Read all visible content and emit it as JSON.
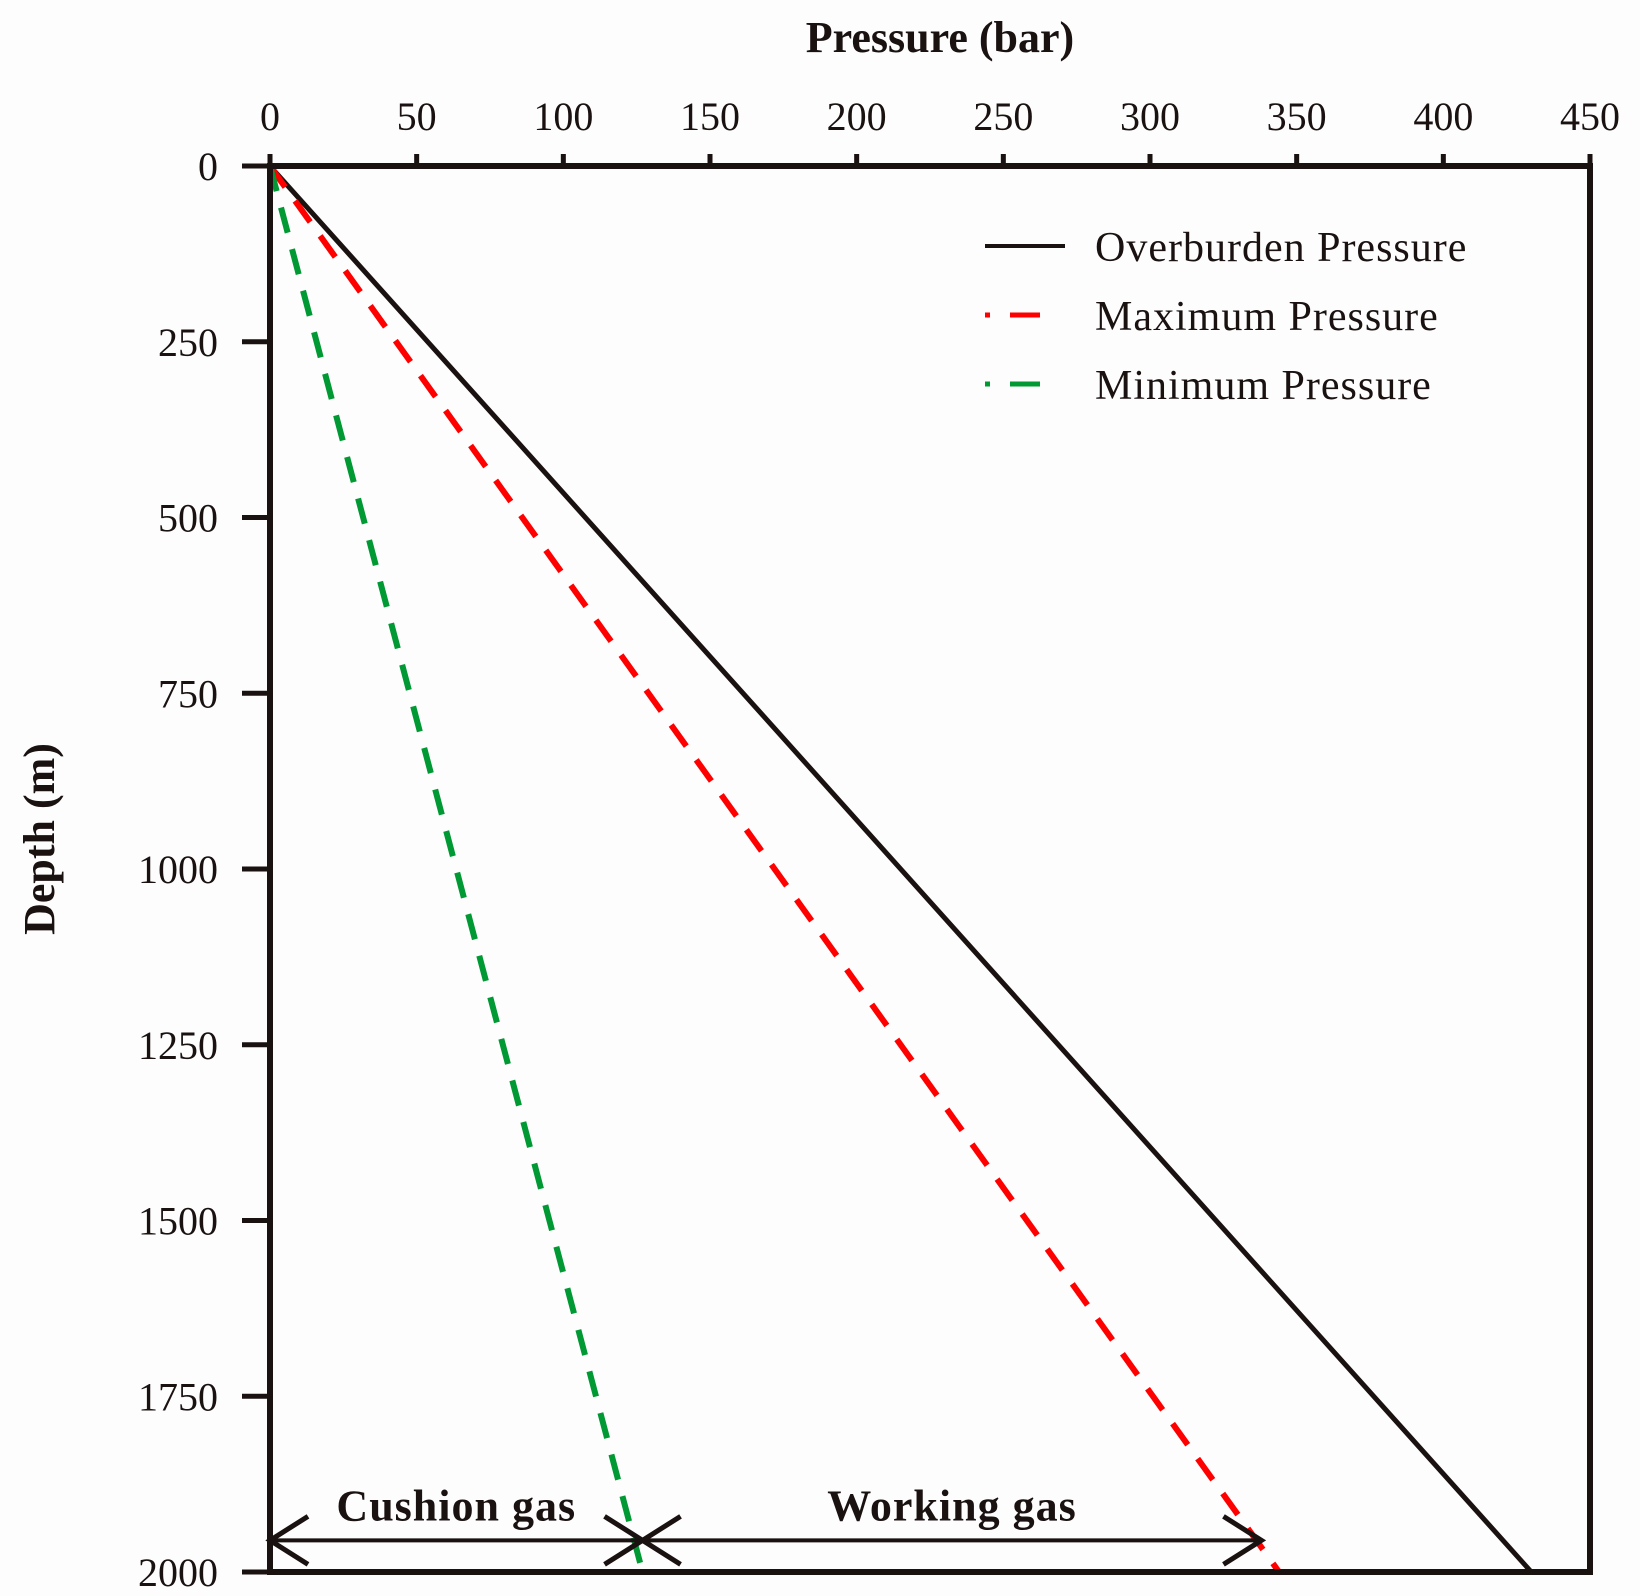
{
  "chart_data": {
    "type": "line",
    "xlabel": "Pressure (bar)",
    "ylabel": "Depth (m)",
    "xlim": [
      0,
      450
    ],
    "ylim": [
      0,
      2000
    ],
    "x_axis_position": "top",
    "y_axis_inverted": true,
    "grid": false,
    "legend_position": "top-right",
    "xticks": [
      0,
      50,
      100,
      150,
      200,
      250,
      300,
      350,
      400,
      450
    ],
    "yticks": [
      0,
      250,
      500,
      750,
      1000,
      1250,
      1500,
      1750,
      2000
    ],
    "series": [
      {
        "name": "Overburden Pressure",
        "style": "solid",
        "color": "#1a1111",
        "points": [
          [
            0,
            0
          ],
          [
            430,
            2000
          ]
        ]
      },
      {
        "name": "Maximum Pressure",
        "style": "dashed",
        "color": "#ff0000",
        "points": [
          [
            0,
            0
          ],
          [
            344,
            2000
          ]
        ]
      },
      {
        "name": "Minimum Pressure",
        "style": "dashed",
        "color": "#009933",
        "points": [
          [
            0,
            0
          ],
          [
            127,
            2000
          ]
        ]
      }
    ],
    "annotations": [
      {
        "label": "Cushion gas",
        "x_start": 0,
        "x_end": 127,
        "depth": 1955
      },
      {
        "label": "Working gas",
        "x_start": 127,
        "x_end": 338,
        "depth": 1955
      }
    ]
  }
}
